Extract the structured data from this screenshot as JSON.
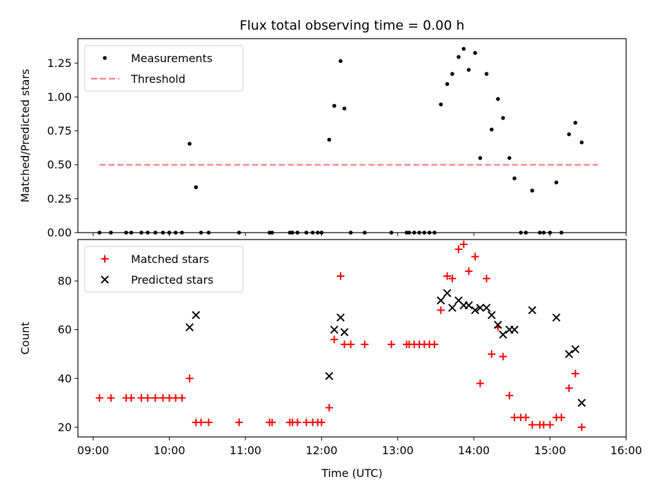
{
  "chart_data": [
    {
      "type": "scatter",
      "title": "Flux total observing time = 0.00 h",
      "xlabel": "",
      "ylabel": "Matched/Predicted stars",
      "xlim": [
        "08:48",
        "16:00"
      ],
      "ylim": [
        0,
        1.43
      ],
      "yticks": [
        "0.00",
        "0.25",
        "0.50",
        "0.75",
        "1.00",
        "1.25"
      ],
      "legend": "top-left",
      "series": [
        {
          "name": "Measurements",
          "marker": "dot",
          "color": "#000000",
          "points": [
            [
              "09:05",
              0
            ],
            [
              "09:14",
              0
            ],
            [
              "09:26",
              0
            ],
            [
              "09:30",
              0
            ],
            [
              "09:38",
              0
            ],
            [
              "09:43",
              0
            ],
            [
              "09:49",
              0
            ],
            [
              "09:55",
              0
            ],
            [
              "10:00",
              0
            ],
            [
              "10:05",
              0
            ],
            [
              "10:10",
              0
            ],
            [
              "10:16",
              0.655
            ],
            [
              "10:21",
              0.335
            ],
            [
              "10:25",
              0
            ],
            [
              "10:31",
              0
            ],
            [
              "10:55",
              0
            ],
            [
              "11:19",
              0
            ],
            [
              "11:21",
              0
            ],
            [
              "11:35",
              0
            ],
            [
              "11:37",
              0
            ],
            [
              "11:41",
              0
            ],
            [
              "11:48",
              0
            ],
            [
              "11:53",
              0
            ],
            [
              "11:57",
              0
            ],
            [
              "12:00",
              0
            ],
            [
              "12:06",
              0.685
            ],
            [
              "12:10",
              0.935
            ],
            [
              "12:15",
              1.265
            ],
            [
              "12:18",
              0.915
            ],
            [
              "12:23",
              0
            ],
            [
              "12:34",
              0
            ],
            [
              "12:55",
              0
            ],
            [
              "13:07",
              0
            ],
            [
              "13:09",
              0
            ],
            [
              "13:13",
              0
            ],
            [
              "13:17",
              0
            ],
            [
              "13:21",
              0
            ],
            [
              "13:25",
              0
            ],
            [
              "13:29",
              0
            ],
            [
              "13:34",
              0.945
            ],
            [
              "13:39",
              1.095
            ],
            [
              "13:43",
              1.17
            ],
            [
              "13:48",
              1.295
            ],
            [
              "13:52",
              1.355
            ],
            [
              "13:56",
              1.2
            ],
            [
              "14:01",
              1.325
            ],
            [
              "14:05",
              0.55
            ],
            [
              "14:10",
              1.17
            ],
            [
              "14:14",
              0.76
            ],
            [
              "14:19",
              0.985
            ],
            [
              "14:23",
              0.845
            ],
            [
              "14:28",
              0.55
            ],
            [
              "14:32",
              0.4
            ],
            [
              "14:37",
              0
            ],
            [
              "14:41",
              0
            ],
            [
              "14:46",
              0.31
            ],
            [
              "14:52",
              0
            ],
            [
              "14:55",
              0
            ],
            [
              "15:00",
              0
            ],
            [
              "15:05",
              0.37
            ],
            [
              "15:09",
              0
            ],
            [
              "15:15",
              0.725
            ],
            [
              "15:20",
              0.81
            ],
            [
              "15:25",
              0.665
            ]
          ]
        },
        {
          "name": "Threshold",
          "marker": "dashed-line",
          "color": "#ff7f7f",
          "points": [
            [
              "09:05",
              0.5
            ],
            [
              "15:38",
              0.5
            ]
          ]
        }
      ]
    },
    {
      "type": "scatter",
      "title": "",
      "xlabel": "Time (UTC)",
      "ylabel": "Count",
      "xlim": [
        "08:48",
        "16:00"
      ],
      "ylim": [
        16,
        97
      ],
      "xticks": [
        "09:00",
        "10:00",
        "11:00",
        "12:00",
        "13:00",
        "14:00",
        "15:00",
        "16:00"
      ],
      "yticks": [
        "20",
        "40",
        "60",
        "80"
      ],
      "legend": "top-left",
      "series": [
        {
          "name": "Matched stars",
          "marker": "plus",
          "color": "#ff0000",
          "points": [
            [
              "09:05",
              32
            ],
            [
              "09:14",
              32
            ],
            [
              "09:26",
              32
            ],
            [
              "09:30",
              32
            ],
            [
              "09:38",
              32
            ],
            [
              "09:43",
              32
            ],
            [
              "09:49",
              32
            ],
            [
              "09:55",
              32
            ],
            [
              "10:00",
              32
            ],
            [
              "10:05",
              32
            ],
            [
              "10:10",
              32
            ],
            [
              "10:16",
              40
            ],
            [
              "10:21",
              22
            ],
            [
              "10:25",
              22
            ],
            [
              "10:31",
              22
            ],
            [
              "10:55",
              22
            ],
            [
              "11:19",
              22
            ],
            [
              "11:21",
              22
            ],
            [
              "11:35",
              22
            ],
            [
              "11:37",
              22
            ],
            [
              "11:41",
              22
            ],
            [
              "11:48",
              22
            ],
            [
              "11:53",
              22
            ],
            [
              "11:57",
              22
            ],
            [
              "12:00",
              22
            ],
            [
              "12:06",
              28
            ],
            [
              "12:10",
              56
            ],
            [
              "12:15",
              82
            ],
            [
              "12:18",
              54
            ],
            [
              "12:23",
              54
            ],
            [
              "12:34",
              54
            ],
            [
              "12:55",
              54
            ],
            [
              "13:07",
              54
            ],
            [
              "13:09",
              54
            ],
            [
              "13:13",
              54
            ],
            [
              "13:17",
              54
            ],
            [
              "13:21",
              54
            ],
            [
              "13:25",
              54
            ],
            [
              "13:29",
              54
            ],
            [
              "13:34",
              68
            ],
            [
              "13:39",
              82
            ],
            [
              "13:43",
              81
            ],
            [
              "13:48",
              93
            ],
            [
              "13:52",
              95
            ],
            [
              "13:56",
              84
            ],
            [
              "14:01",
              90
            ],
            [
              "14:05",
              38
            ],
            [
              "14:10",
              81
            ],
            [
              "14:14",
              50
            ],
            [
              "14:19",
              61
            ],
            [
              "14:23",
              49
            ],
            [
              "14:28",
              33
            ],
            [
              "14:32",
              24
            ],
            [
              "14:37",
              24
            ],
            [
              "14:41",
              24
            ],
            [
              "14:46",
              21
            ],
            [
              "14:52",
              21
            ],
            [
              "14:55",
              21
            ],
            [
              "15:00",
              21
            ],
            [
              "15:05",
              24
            ],
            [
              "15:09",
              24
            ],
            [
              "15:15",
              36
            ],
            [
              "15:20",
              42
            ],
            [
              "15:25",
              20
            ]
          ]
        },
        {
          "name": "Predicted stars",
          "marker": "x",
          "color": "#000000",
          "points": [
            [
              "10:16",
              61
            ],
            [
              "10:21",
              66
            ],
            [
              "12:06",
              41
            ],
            [
              "12:10",
              60
            ],
            [
              "12:15",
              65
            ],
            [
              "12:18",
              59
            ],
            [
              "13:34",
              72
            ],
            [
              "13:39",
              75
            ],
            [
              "13:43",
              69
            ],
            [
              "13:48",
              72
            ],
            [
              "13:52",
              70
            ],
            [
              "13:56",
              70
            ],
            [
              "14:01",
              68
            ],
            [
              "14:05",
              69
            ],
            [
              "14:10",
              69
            ],
            [
              "14:14",
              66
            ],
            [
              "14:19",
              62
            ],
            [
              "14:23",
              58
            ],
            [
              "14:28",
              60
            ],
            [
              "14:32",
              60
            ],
            [
              "14:46",
              68
            ],
            [
              "15:05",
              65
            ],
            [
              "15:15",
              50
            ],
            [
              "15:20",
              52
            ],
            [
              "15:25",
              30
            ]
          ]
        }
      ]
    }
  ]
}
